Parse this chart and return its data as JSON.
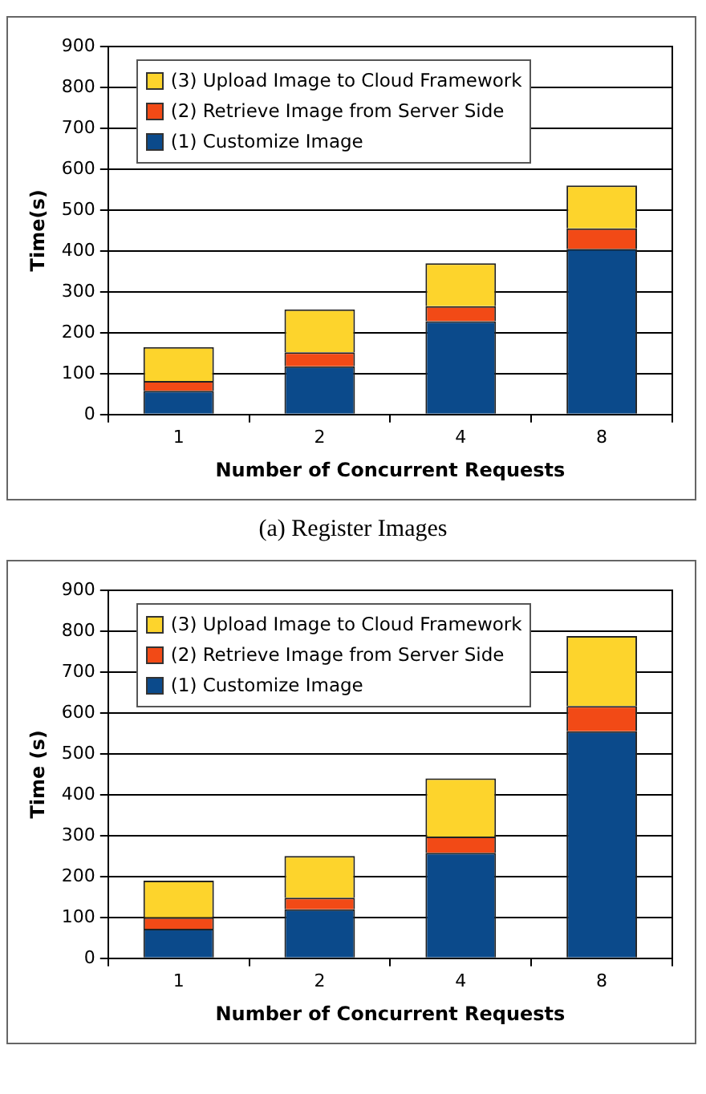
{
  "chart_data": [
    {
      "type": "bar",
      "stacked": true,
      "xlabel": "Number of Concurrent Requests",
      "ylabel": "Time(s)",
      "categories": [
        "1",
        "2",
        "4",
        "8"
      ],
      "series": [
        {
          "name": "(1) Customize Image",
          "color": "#0b4a8b",
          "values": [
            58,
            118,
            228,
            405
          ]
        },
        {
          "name": "(2) Retrieve Image from Server Side",
          "color": "#f24a16",
          "values": [
            24,
            34,
            37,
            50
          ]
        },
        {
          "name": "(3) Upload Image to Cloud Framework",
          "color": "#fdd42c",
          "values": [
            83,
            105,
            105,
            105
          ]
        }
      ],
      "ylim": [
        0,
        900
      ],
      "yticks": [
        0,
        100,
        200,
        300,
        400,
        500,
        600,
        700,
        800,
        900
      ],
      "grid": "y",
      "legend": "top left",
      "annotations": [
        "(a) Register Images"
      ]
    },
    {
      "type": "bar",
      "stacked": true,
      "xlabel": "Number of Concurrent Requests",
      "ylabel": "Time (s)",
      "categories": [
        "1",
        "2",
        "4",
        "8"
      ],
      "series": [
        {
          "name": "(1) Customize Image",
          "color": "#0b4a8b",
          "values": [
            72,
            120,
            258,
            555
          ]
        },
        {
          "name": "(2) Retrieve Image from Server Side",
          "color": "#f24a16",
          "values": [
            28,
            28,
            40,
            62
          ]
        },
        {
          "name": "(3) Upload Image to Cloud Framework",
          "color": "#fdd42c",
          "values": [
            90,
            102,
            142,
            171
          ]
        }
      ],
      "ylim": [
        0,
        900
      ],
      "yticks": [
        0,
        100,
        200,
        300,
        400,
        500,
        600,
        700,
        800,
        900
      ],
      "grid": "y",
      "legend": "top left"
    }
  ]
}
